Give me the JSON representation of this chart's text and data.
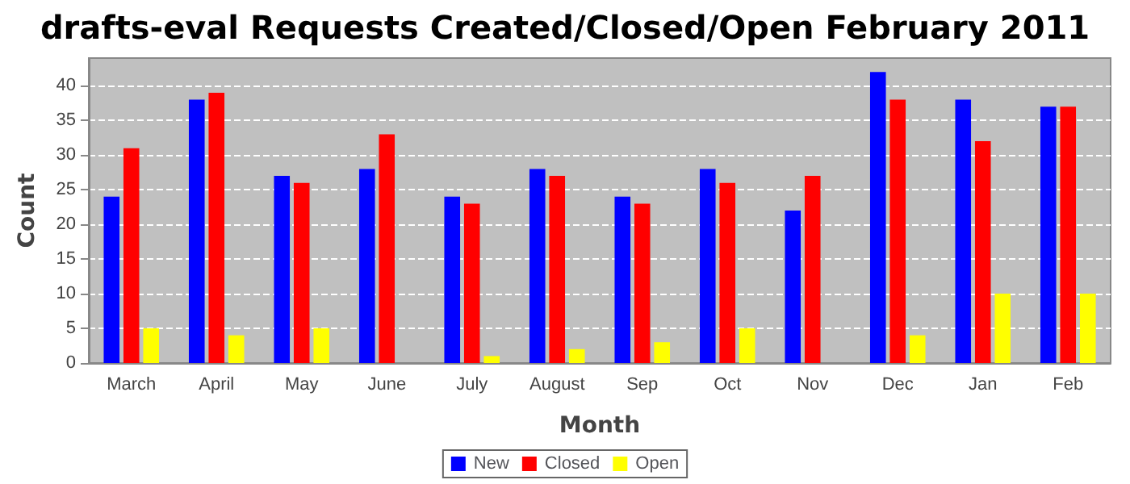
{
  "chart_data": {
    "type": "bar",
    "title": "drafts-eval Requests Created/Closed/Open February 2011",
    "xlabel": "Month",
    "ylabel": "Count",
    "categories": [
      "March",
      "April",
      "May",
      "June",
      "July",
      "August",
      "Sep",
      "Oct",
      "Nov",
      "Dec",
      "Jan",
      "Feb"
    ],
    "series": [
      {
        "name": "New",
        "color": "#0000ff",
        "values": [
          24,
          38,
          27,
          28,
          24,
          28,
          24,
          28,
          22,
          42,
          38,
          37
        ]
      },
      {
        "name": "Closed",
        "color": "#ff0000",
        "values": [
          31,
          39,
          26,
          33,
          23,
          27,
          23,
          26,
          27,
          38,
          32,
          37
        ]
      },
      {
        "name": "Open",
        "color": "#ffff00",
        "values": [
          5,
          4,
          5,
          0,
          1,
          2,
          3,
          5,
          0,
          4,
          10,
          10
        ]
      }
    ],
    "ylim": [
      0,
      44
    ],
    "yticks": [
      0,
      5,
      10,
      15,
      20,
      25,
      30,
      35,
      40
    ],
    "grid": "y",
    "legend": "bottom"
  }
}
